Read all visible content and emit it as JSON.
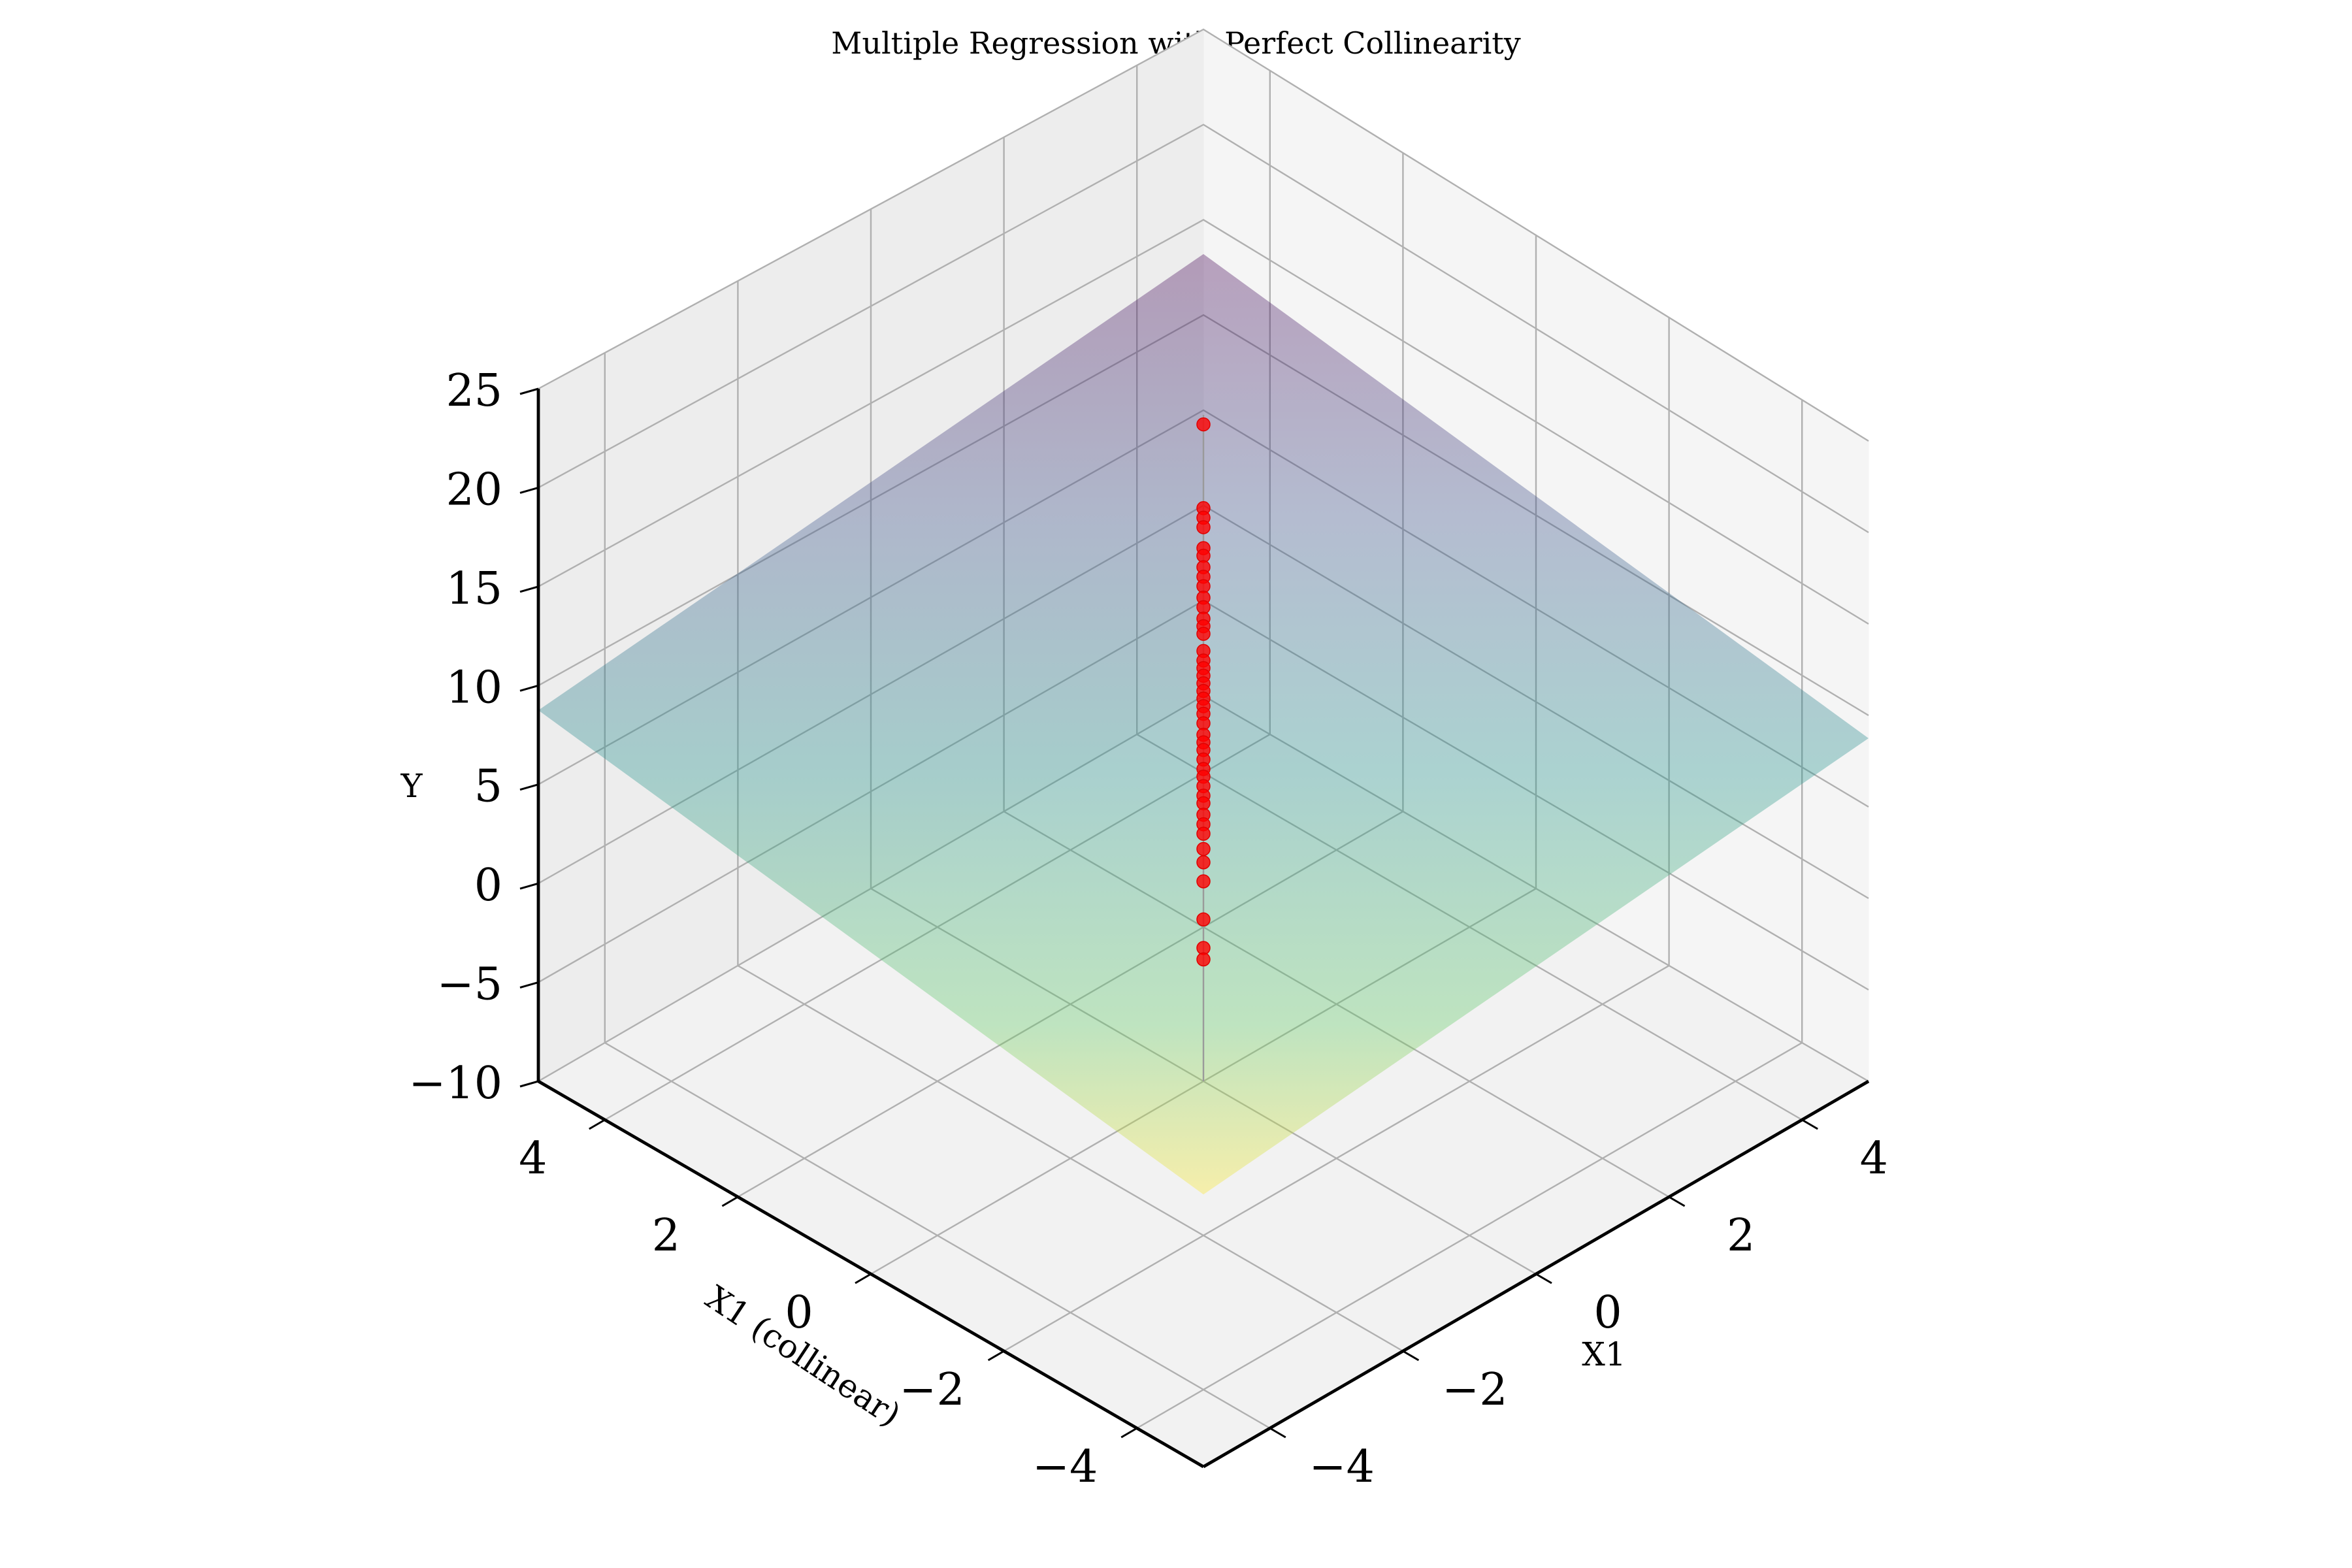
{
  "chart_data": {
    "type": "scatter",
    "title": "Multiple Regression with Perfect Collinearity",
    "xlabel": "X1",
    "ylabel": "X1 (collinear)",
    "zlabel": "Y",
    "xlim": [
      -5,
      5
    ],
    "ylim": [
      -5,
      5
    ],
    "zlim": [
      -10,
      25
    ],
    "x_ticks": [
      "-4",
      "-2",
      "0",
      "2",
      "4"
    ],
    "y_ticks": [
      "-4",
      "-2",
      "0",
      "2",
      "4"
    ],
    "z_ticks": [
      "-10",
      "-5",
      "0",
      "5",
      "10",
      "15",
      "20",
      "25"
    ],
    "grid": true,
    "point_color": "#ff0000",
    "surface_colormap": [
      "#440154",
      "#3b528b",
      "#21918c",
      "#5ec962",
      "#fde725"
    ],
    "scatter_points": [
      {
        "x": 0,
        "y": 0,
        "z": 24.5
      },
      {
        "x": 0,
        "y": 0,
        "z": 20.1
      },
      {
        "x": 0,
        "y": 0,
        "z": 19.6
      },
      {
        "x": 0,
        "y": 0,
        "z": 19.1
      },
      {
        "x": 0,
        "y": 0,
        "z": 18.0
      },
      {
        "x": 0,
        "y": 0,
        "z": 17.6
      },
      {
        "x": 0,
        "y": 0,
        "z": 17.0
      },
      {
        "x": 0,
        "y": 0,
        "z": 16.5
      },
      {
        "x": 0,
        "y": 0,
        "z": 16.0
      },
      {
        "x": 0,
        "y": 0,
        "z": 15.4
      },
      {
        "x": 0,
        "y": 0,
        "z": 14.9
      },
      {
        "x": 0,
        "y": 0,
        "z": 14.3
      },
      {
        "x": 0,
        "y": 0,
        "z": 13.9
      },
      {
        "x": 0,
        "y": 0,
        "z": 13.5
      },
      {
        "x": 0,
        "y": 0,
        "z": 12.6
      },
      {
        "x": 0,
        "y": 0,
        "z": 12.1
      },
      {
        "x": 0,
        "y": 0,
        "z": 11.7
      },
      {
        "x": 0,
        "y": 0,
        "z": 11.3
      },
      {
        "x": 0,
        "y": 0,
        "z": 10.9
      },
      {
        "x": 0,
        "y": 0,
        "z": 10.5
      },
      {
        "x": 0,
        "y": 0,
        "z": 10.1
      },
      {
        "x": 0,
        "y": 0,
        "z": 9.7
      },
      {
        "x": 0,
        "y": 0,
        "z": 9.3
      },
      {
        "x": 0,
        "y": 0,
        "z": 8.8
      },
      {
        "x": 0,
        "y": 0,
        "z": 8.2
      },
      {
        "x": 0,
        "y": 0,
        "z": 7.8
      },
      {
        "x": 0,
        "y": 0,
        "z": 7.4
      },
      {
        "x": 0,
        "y": 0,
        "z": 6.9
      },
      {
        "x": 0,
        "y": 0,
        "z": 6.4
      },
      {
        "x": 0,
        "y": 0,
        "z": 6.0
      },
      {
        "x": 0,
        "y": 0,
        "z": 5.5
      },
      {
        "x": 0,
        "y": 0,
        "z": 5.0
      },
      {
        "x": 0,
        "y": 0,
        "z": 4.6
      },
      {
        "x": 0,
        "y": 0,
        "z": 4.0
      },
      {
        "x": 0,
        "y": 0,
        "z": 3.5
      },
      {
        "x": 0,
        "y": 0,
        "z": 3.0
      },
      {
        "x": 0,
        "y": 0,
        "z": 2.2
      },
      {
        "x": 0,
        "y": 0,
        "z": 1.5
      },
      {
        "x": 0,
        "y": 0,
        "z": 0.5
      },
      {
        "x": 0,
        "y": 0,
        "z": -1.5
      },
      {
        "x": 0,
        "y": 0,
        "z": -3.0
      },
      {
        "x": 0,
        "y": 0,
        "z": -3.6
      }
    ],
    "surface": {
      "x_range": [
        -5,
        5
      ],
      "y_range": [
        -5,
        5
      ],
      "z_min": 4.3,
      "z_max": 13.2
    }
  }
}
